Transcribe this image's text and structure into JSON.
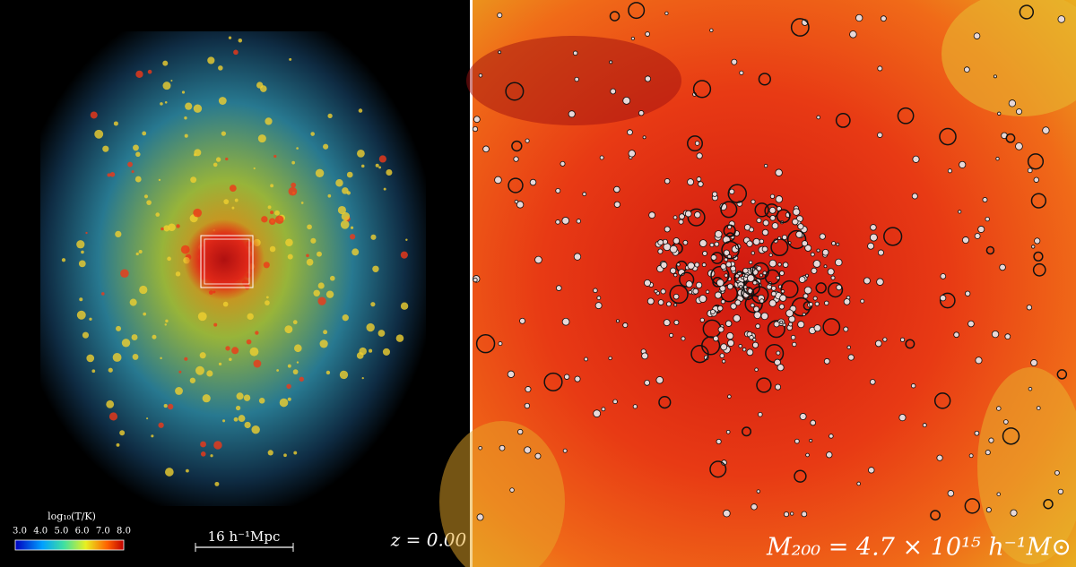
{
  "left_panel": {
    "colorbar": {
      "label": "log₁₀(T/K)",
      "ticks": [
        "3.0",
        "4.0",
        "5.0",
        "6.0",
        "7.0",
        "8.0"
      ]
    },
    "scale_bar": "16 h⁻¹Mpc",
    "redshift": "z = 0.00"
  },
  "right_panel": {
    "mass_label": "M₂₀₀ = 4.7 × 10¹⁵ h⁻¹M⊙"
  }
}
